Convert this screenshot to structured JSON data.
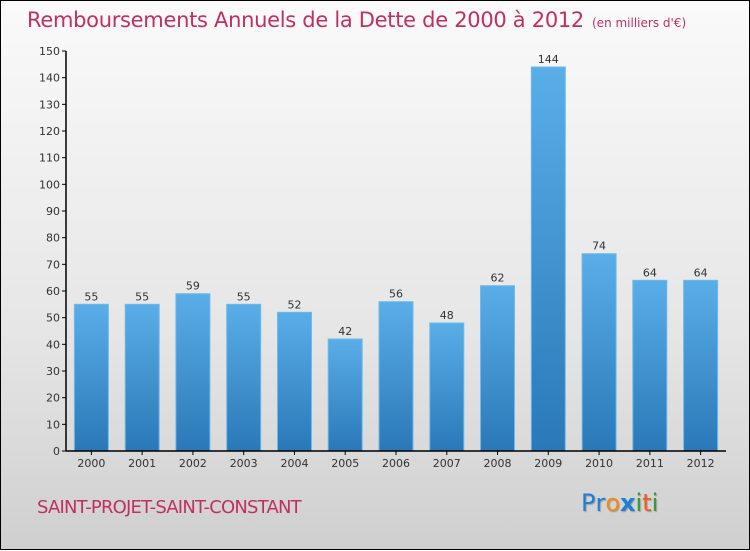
{
  "header": {
    "title": "Remboursements Annuels de la Dette de 2000 à 2012",
    "unit_note": "(en milliers d'€)"
  },
  "footer": {
    "commune": "SAINT-PROJET-SAINT-CONSTANT",
    "logo_letters": [
      {
        "ch": "P",
        "color": "#1f7fd4"
      },
      {
        "ch": "r",
        "color": "#1f7fd4"
      },
      {
        "ch": "o",
        "color": "#f08a1c"
      },
      {
        "ch": "x",
        "color": "#1f7fd4"
      },
      {
        "ch": "i",
        "color": "#2e9e3a"
      },
      {
        "ch": "t",
        "color": "#f05a1c"
      },
      {
        "ch": "i",
        "color": "#2e9e3a"
      }
    ]
  },
  "colors": {
    "title": "#c0305f",
    "bar_top": "#5aaee8",
    "bar_bottom": "#2a78b8",
    "axis": "#000000"
  },
  "chart_data": {
    "type": "bar",
    "title": "Remboursements Annuels de la Dette de 2000 à 2012",
    "subtitle": "(en milliers d'€)",
    "xlabel": "",
    "ylabel": "",
    "categories": [
      "2000",
      "2001",
      "2002",
      "2003",
      "2004",
      "2005",
      "2006",
      "2007",
      "2008",
      "2009",
      "2010",
      "2011",
      "2012"
    ],
    "values": [
      55,
      55,
      59,
      55,
      52,
      42,
      56,
      48,
      62,
      144,
      74,
      64,
      64
    ],
    "ylim": [
      0,
      150
    ],
    "yticks": [
      0,
      10,
      20,
      30,
      40,
      50,
      60,
      70,
      80,
      90,
      100,
      110,
      120,
      130,
      140,
      150
    ],
    "grid": false,
    "legend": "none",
    "data_labels": true
  }
}
